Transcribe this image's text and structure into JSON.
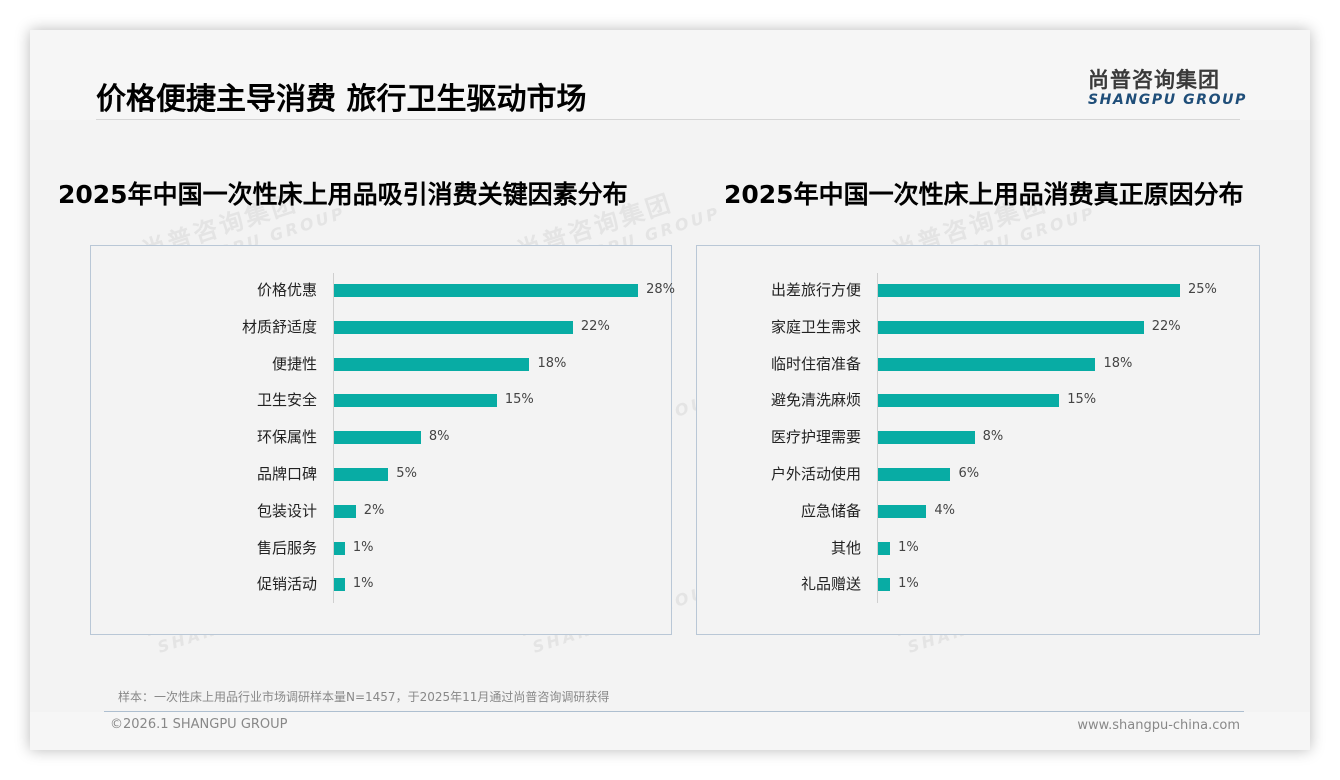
{
  "header": {
    "title": "价格便捷主导消费 旅行卫生驱动市场",
    "logo_cn": "尚普咨询集团",
    "logo_en": "SHANGPU GROUP"
  },
  "watermark": {
    "cn": "尚普咨询集团",
    "en": "SHANGPU GROUP"
  },
  "colors": {
    "bar": "#08aca4",
    "logo_en": "#1f4e79",
    "panel_border": "#b9c7d6"
  },
  "chart_data": [
    {
      "type": "bar",
      "orientation": "horizontal",
      "title": "2025年中国一次性床上用品吸引消费关键因素分布",
      "categories": [
        "价格优惠",
        "材质舒适度",
        "便捷性",
        "卫生安全",
        "环保属性",
        "品牌口碑",
        "包装设计",
        "售后服务",
        "促销活动"
      ],
      "values": [
        28,
        22,
        18,
        15,
        8,
        5,
        2,
        1,
        1
      ],
      "labels": [
        "28%",
        "22%",
        "18%",
        "15%",
        "8%",
        "5%",
        "2%",
        "1%",
        "1%"
      ],
      "unit": "%",
      "xlabel": "",
      "ylabel": "",
      "grid": false,
      "legend": false
    },
    {
      "type": "bar",
      "orientation": "horizontal",
      "title": "2025年中国一次性床上用品消费真正原因分布",
      "categories": [
        "出差旅行方便",
        "家庭卫生需求",
        "临时住宿准备",
        "避免清洗麻烦",
        "医疗护理需要",
        "户外活动使用",
        "应急储备",
        "其他",
        "礼品赠送"
      ],
      "values": [
        25,
        22,
        18,
        15,
        8,
        6,
        4,
        1,
        1
      ],
      "labels": [
        "25%",
        "22%",
        "18%",
        "15%",
        "8%",
        "6%",
        "4%",
        "1%",
        "1%"
      ],
      "unit": "%",
      "xlabel": "",
      "ylabel": "",
      "grid": false,
      "legend": false
    }
  ],
  "footer": {
    "note": "样本：一次性床上用品行业市场调研样本量N=1457，于2025年11月通过尚普咨询调研获得",
    "copyright": "©2026.1 SHANGPU GROUP",
    "website": "www.shangpu-china.com"
  }
}
